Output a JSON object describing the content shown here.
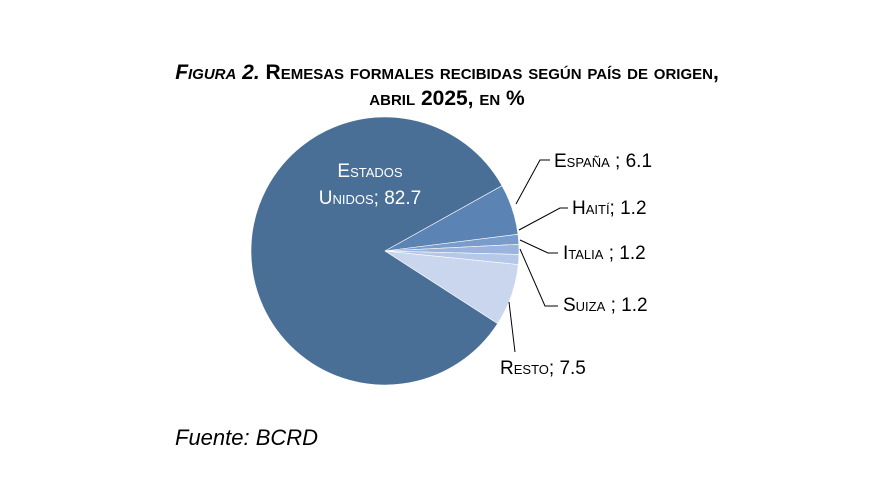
{
  "title": {
    "fig_label": "Figura 2.",
    "line1_rest": " Remesas formales recibidas según país de origen,",
    "line2": "abril 2025, en %"
  },
  "source": "Fuente: BCRD",
  "chart_data": {
    "type": "pie",
    "title": "Figura 2. Remesas formales recibidas según país de origen, abril 2025, en %",
    "slices": [
      {
        "label": "Estados Unidos",
        "value": 82.7,
        "color": "#4a6f97"
      },
      {
        "label": "España",
        "value": 6.1,
        "color": "#5b83b4"
      },
      {
        "label": "Haití",
        "value": 1.2,
        "color": "#7a9ccb"
      },
      {
        "label": "Italia",
        "value": 1.2,
        "color": "#9ab4dd"
      },
      {
        "label": "Suiza",
        "value": 1.2,
        "color": "#b5c8e8"
      },
      {
        "label": "Resto",
        "value": 7.5,
        "color": "#c9d6ee"
      }
    ],
    "data_labels": [
      "Estados Unidos; 82.7",
      "España ; 6.1",
      "Haití; 1.2",
      "Italia ; 1.2",
      "Suiza ; 1.2",
      "Resto; 7.5"
    ]
  }
}
